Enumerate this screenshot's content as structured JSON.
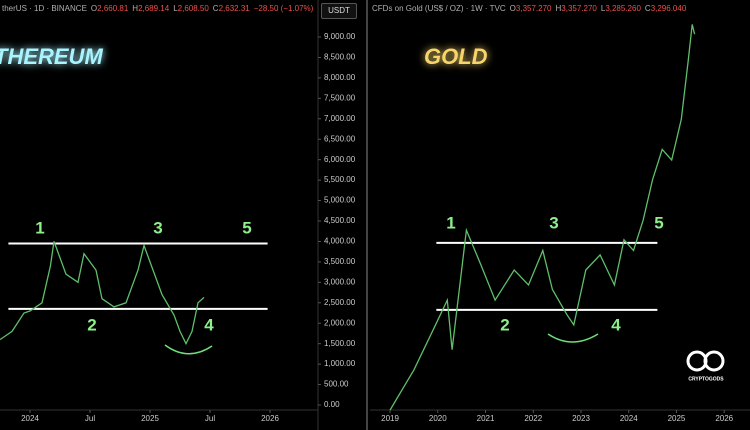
{
  "chart_data": [
    {
      "type": "line",
      "title": "THEREUM",
      "title_color": "#a8f4ff",
      "header": {
        "symbol": "therUS · 1D · BINANCE",
        "ohlc": [
          {
            "key": "O",
            "value": "2,660.81"
          },
          {
            "key": "H",
            "value": "2,689.14"
          },
          {
            "key": "L",
            "value": "2,608.50"
          },
          {
            "key": "C",
            "value": "2,632.31"
          }
        ],
        "change": "−28.50 (−1.07%)"
      },
      "currency": "USDT",
      "xlim": [
        2023.75,
        2026.4
      ],
      "xticks": [
        2024,
        {
          "value": 2024.5,
          "label": "Jul"
        },
        2025,
        {
          "value": 2025.5,
          "label": "Jul"
        },
        2026
      ],
      "ylim": [
        0,
        9000
      ],
      "yticks": [
        {
          "value": 0,
          "label": "0.00"
        },
        {
          "value": 500,
          "label": "500.00"
        },
        {
          "value": 1000,
          "label": "1,000.00"
        },
        {
          "value": 1500,
          "label": "1,500.00"
        },
        {
          "value": 2000,
          "label": "2,000.00"
        },
        {
          "value": 2500,
          "label": "2,500.00"
        },
        {
          "value": 3000,
          "label": "3,000.00"
        },
        {
          "value": 3500,
          "label": "3,500.00"
        },
        {
          "value": 4000,
          "label": "4,000.00"
        },
        {
          "value": 4500,
          "label": "4,500.00"
        },
        {
          "value": 5000,
          "label": "5,000.00"
        },
        {
          "value": 5500,
          "label": "5,500.00"
        },
        {
          "value": 6000,
          "label": "6,000.00"
        },
        {
          "value": 6500,
          "label": "6,500.00"
        },
        {
          "value": 7000,
          "label": "7,000.00"
        },
        {
          "value": 7500,
          "label": "7,500.00"
        },
        {
          "value": 8000,
          "label": "8,000.00"
        },
        {
          "value": 8500,
          "label": "8,500.00"
        },
        {
          "value": 9000,
          "label": "9,000.00"
        }
      ],
      "series": [
        {
          "color": "#5fbf6a",
          "x": [
            2023.75,
            2023.85,
            2023.95,
            2024.0,
            2024.1,
            2024.17,
            2024.2,
            2024.3,
            2024.4,
            2024.45,
            2024.55,
            2024.6,
            2024.7,
            2024.8,
            2024.9,
            2024.95,
            2025.0,
            2025.1,
            2025.2,
            2025.25,
            2025.3,
            2025.35,
            2025.4,
            2025.45
          ],
          "values": [
            1600,
            1800,
            2250,
            2300,
            2500,
            3400,
            4000,
            3200,
            3000,
            3700,
            3300,
            2600,
            2400,
            2500,
            3300,
            3900,
            3500,
            2700,
            2200,
            1800,
            1500,
            1800,
            2500,
            2632.31
          ]
        }
      ],
      "levels": {
        "xlim": [
          2023.82,
          2025.98
        ],
        "values": [
          3950,
          2350
        ]
      },
      "annotations": [
        "1",
        "2",
        "3",
        "4",
        "5"
      ]
    },
    {
      "type": "line",
      "title": "GOLD",
      "title_color": "#f7d56a",
      "header": {
        "symbol": "CFDs on Gold (US$ / OZ) · 1W · TVC",
        "ohlc": [
          {
            "key": "O",
            "value": "3,357.270"
          },
          {
            "key": "H",
            "value": "3,357.270"
          },
          {
            "key": "L",
            "value": "3,285.260"
          },
          {
            "key": "C",
            "value": "3,296.040"
          }
        ]
      },
      "xlim": [
        2018.58,
        2026.54
      ],
      "xticks": [
        2019,
        2020,
        2021,
        2022,
        2023,
        2024,
        2025,
        2026
      ],
      "ylim": [
        1250,
        3450
      ],
      "series": [
        {
          "color": "#5fbf6a",
          "x": [
            2019.0,
            2019.5,
            2019.9,
            2020.2,
            2020.3,
            2020.6,
            2020.9,
            2021.2,
            2021.6,
            2021.9,
            2022.2,
            2022.4,
            2022.7,
            2022.85,
            2023.1,
            2023.4,
            2023.7,
            2023.9,
            2024.1,
            2024.3,
            2024.5,
            2024.7,
            2024.9,
            2025.1,
            2025.25,
            2025.33,
            2025.38
          ],
          "values": [
            1250,
            1476,
            1700,
            1870,
            1590,
            2265,
            2070,
            1870,
            2040,
            1955,
            2150,
            1930,
            1790,
            1730,
            2040,
            2125,
            1955,
            2210,
            2150,
            2320,
            2550,
            2720,
            2660,
            2890,
            3230,
            3425,
            3370
          ]
        }
      ],
      "levels": {
        "xlim": [
          2019.97,
          2024.6
        ],
        "values": [
          2193,
          1815
        ]
      },
      "annotations": [
        "1",
        "2",
        "3",
        "4",
        "5"
      ]
    }
  ],
  "logo": "CRYPTOGODS"
}
